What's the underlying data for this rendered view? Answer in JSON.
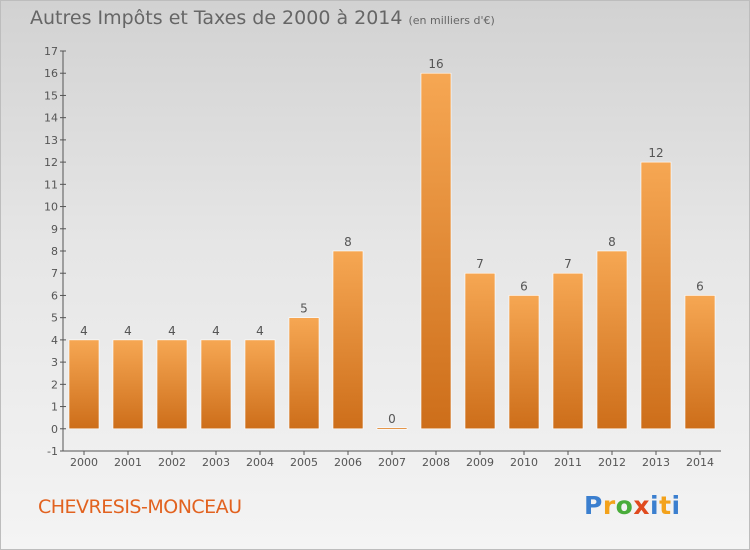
{
  "header": {
    "title": "Autres Impôts et Taxes de 2000 à 2014",
    "unit": "(en milliers d'€)"
  },
  "commune": "CHEVRESIS-MONCEAU",
  "logo": "Proxiti",
  "colors": {
    "bar_light": "#f6a753",
    "bar_dark": "#cd6e1a",
    "axis": "#555555",
    "commune_text": "#e2621f"
  },
  "chart_data": {
    "type": "bar",
    "title": "Autres Impôts et Taxes de 2000 à 2014",
    "subtitle": "(en milliers d'€)",
    "categories": [
      "2000",
      "2001",
      "2002",
      "2003",
      "2004",
      "2005",
      "2006",
      "2007",
      "2008",
      "2009",
      "2010",
      "2011",
      "2012",
      "2013",
      "2014"
    ],
    "values": [
      4,
      4,
      4,
      4,
      4,
      5,
      8,
      0,
      16,
      7,
      6,
      7,
      8,
      12,
      6
    ],
    "ylim": [
      -1,
      17
    ],
    "yticks": [
      -1,
      0,
      1,
      2,
      3,
      4,
      5,
      6,
      7,
      8,
      9,
      10,
      11,
      12,
      13,
      14,
      15,
      16,
      17
    ],
    "grid": false,
    "legend": "none"
  }
}
